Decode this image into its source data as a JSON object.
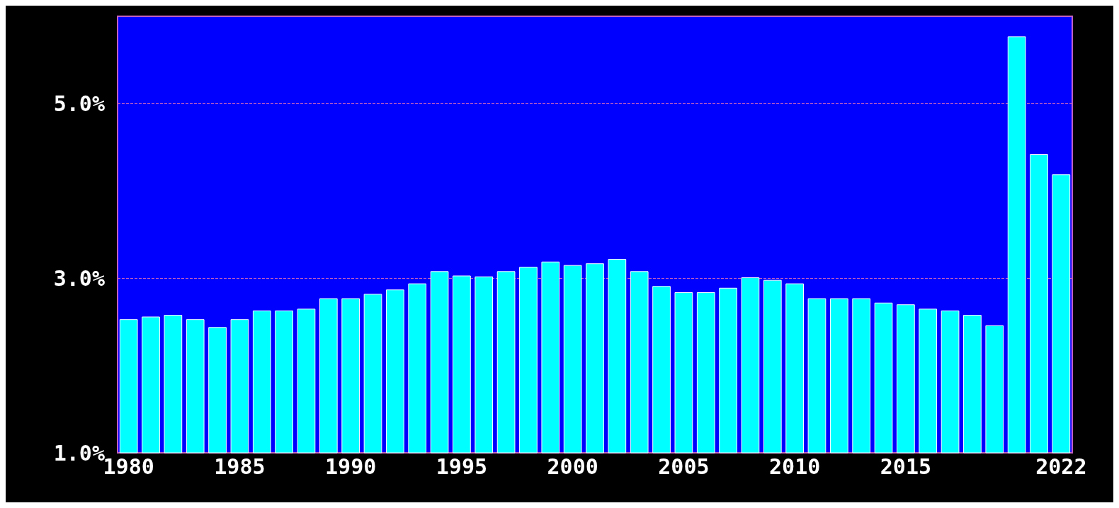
{
  "chart_data": {
    "type": "bar",
    "categories": [
      "1980",
      null,
      null,
      null,
      null,
      "1985",
      null,
      null,
      null,
      null,
      "1990",
      null,
      null,
      null,
      null,
      "1995",
      null,
      null,
      null,
      null,
      "2000",
      null,
      null,
      null,
      null,
      "2005",
      null,
      null,
      null,
      null,
      "2010",
      null,
      null,
      null,
      null,
      "2015",
      null,
      null,
      null,
      null,
      null,
      null,
      "2022"
    ],
    "values": [
      2.53,
      2.56,
      2.58,
      2.53,
      2.44,
      2.53,
      2.63,
      2.63,
      2.65,
      2.77,
      2.77,
      2.82,
      2.87,
      2.94,
      3.08,
      3.03,
      3.02,
      3.08,
      3.13,
      3.19,
      3.15,
      3.17,
      3.22,
      3.08,
      2.91,
      2.84,
      2.84,
      2.89,
      3.01,
      2.98,
      2.94,
      2.77,
      2.77,
      2.77,
      2.72,
      2.7,
      2.65,
      2.63,
      2.58,
      2.46,
      5.77,
      4.42,
      4.19
    ],
    "color": "#00ffff",
    "ylim": [
      1,
      6
    ],
    "yticks": [
      {
        "value": 1,
        "label": "1.0%"
      },
      {
        "value": 3,
        "label": "3.0%"
      },
      {
        "value": 5,
        "label": "5.0%"
      }
    ],
    "grid": "y",
    "line_style": "dashed"
  }
}
